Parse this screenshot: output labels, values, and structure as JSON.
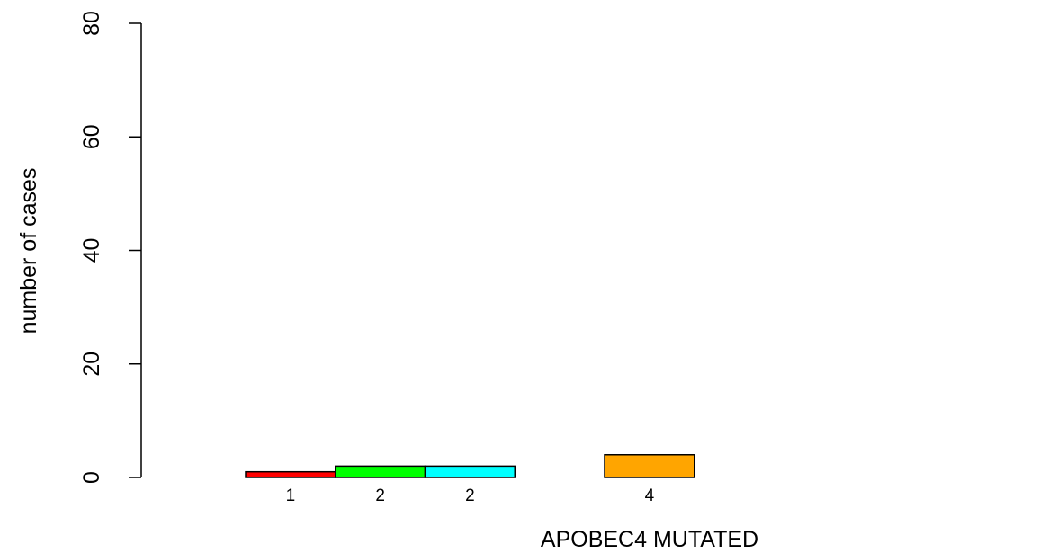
{
  "chart_data": {
    "type": "bar",
    "xlabel": "APOBEC4 MUTATED",
    "ylabel": "number of cases",
    "ylim": [
      0,
      80
    ],
    "yticks": [
      "0",
      "20",
      "40",
      "60",
      "80"
    ],
    "grid": false,
    "categories": [
      "1",
      "2",
      "2",
      "",
      "4",
      "",
      "",
      ""
    ],
    "values": [
      1,
      2,
      2,
      0,
      4,
      0,
      0,
      0
    ],
    "colors": [
      "#ff0000",
      "#00ff00",
      "#00ffff",
      "#0000ff",
      "#ffa500",
      "#a020f0",
      "#ffff00",
      "#ff00ff"
    ]
  }
}
